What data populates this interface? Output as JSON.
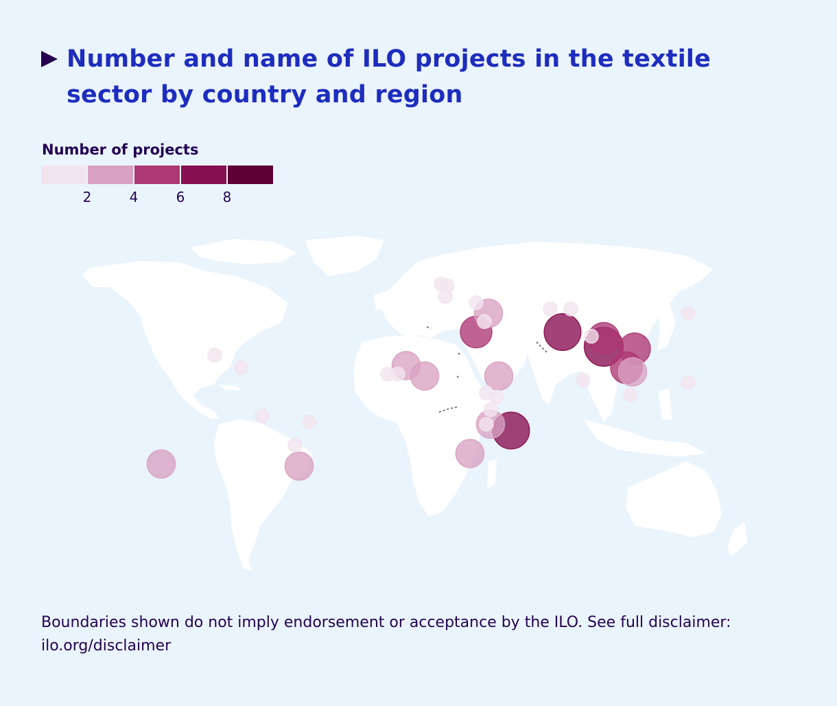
{
  "title": "Number and name of ILO projects in the textile sector by country and region",
  "legend": {
    "title": "Number of projects",
    "ticks": [
      "2",
      "4",
      "6",
      "8"
    ],
    "colors": [
      "#f2e4ee",
      "#d9a1c1",
      "#ad3873",
      "#870e50",
      "#5c0035"
    ]
  },
  "colors": {
    "background": "#eaf4fd",
    "land": "#ffffff",
    "title": "#1e2dbe",
    "text": "#230050",
    "disputed_border": "#777777"
  },
  "chart_data": {
    "type": "bubble-map",
    "value_field": "projects",
    "color_bins": [
      0,
      2,
      4,
      6,
      8,
      10
    ],
    "points": [
      {
        "lon": -99,
        "lat": 19,
        "projects": 1
      },
      {
        "lon": -86,
        "lat": 13,
        "projects": 1
      },
      {
        "lon": -76,
        "lat": -10,
        "projects": 1
      },
      {
        "lon": -53,
        "lat": -13,
        "projects": 1
      },
      {
        "lon": -60,
        "lat": -24,
        "projects": 1
      },
      {
        "lon": -58,
        "lat": -34,
        "projects": 3
      },
      {
        "lon": -125,
        "lat": -33,
        "projects": 3
      },
      {
        "lon": -6,
        "lat": 14,
        "projects": 3
      },
      {
        "lon": -15,
        "lat": 10,
        "projects": 1
      },
      {
        "lon": -10,
        "lat": 10,
        "projects": 1
      },
      {
        "lon": 3,
        "lat": 9,
        "projects": 3
      },
      {
        "lon": 11,
        "lat": 53,
        "projects": 1
      },
      {
        "lon": 14,
        "lat": 52,
        "projects": 1
      },
      {
        "lon": 13,
        "lat": 47,
        "projects": 1
      },
      {
        "lon": 28,
        "lat": 44,
        "projects": 1
      },
      {
        "lon": 34,
        "lat": 39,
        "projects": 3
      },
      {
        "lon": 32,
        "lat": 35,
        "projects": 1
      },
      {
        "lon": 28,
        "lat": 30,
        "projects": 4
      },
      {
        "lon": 39,
        "lat": 9,
        "projects": 3
      },
      {
        "lon": 33,
        "lat": 1,
        "projects": 1
      },
      {
        "lon": 38,
        "lat": -1,
        "projects": 1
      },
      {
        "lon": 35,
        "lat": -7,
        "projects": 1
      },
      {
        "lon": 33,
        "lat": -14,
        "projects": 1
      },
      {
        "lon": 35,
        "lat": -14,
        "projects": 3
      },
      {
        "lon": 45,
        "lat": -17,
        "projects": 6
      },
      {
        "lon": 25,
        "lat": -28,
        "projects": 3
      },
      {
        "lon": 64,
        "lat": 41,
        "projects": 1
      },
      {
        "lon": 74,
        "lat": 41,
        "projects": 1
      },
      {
        "lon": 70,
        "lat": 30,
        "projects": 6
      },
      {
        "lon": 84,
        "lat": 28,
        "projects": 1
      },
      {
        "lon": 90,
        "lat": 27,
        "projects": 4
      },
      {
        "lon": 90,
        "lat": 23,
        "projects": 7
      },
      {
        "lon": 105,
        "lat": 22,
        "projects": 4
      },
      {
        "lon": 101,
        "lat": 13,
        "projects": 4
      },
      {
        "lon": 104,
        "lat": 11,
        "projects": 3
      },
      {
        "lon": 80,
        "lat": 7,
        "projects": 1
      },
      {
        "lon": 103,
        "lat": 0,
        "projects": 1
      },
      {
        "lon": 131,
        "lat": 39,
        "projects": 1
      },
      {
        "lon": 131,
        "lat": 6,
        "projects": 1
      }
    ]
  },
  "disclaimer": "Boundaries shown do not imply endorsement or acceptance by the ILO. See full disclaimer: ilo.org/disclaimer"
}
